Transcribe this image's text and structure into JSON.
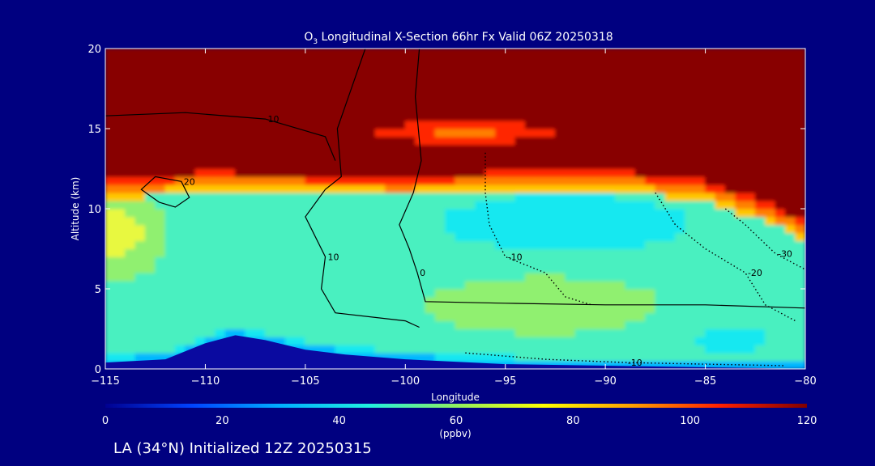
{
  "page": {
    "background": "#000080",
    "footer": "LA (34°N) Initialized 12Z 20250315"
  },
  "chart_data": {
    "type": "heatmap",
    "title": "O3 Longitudinal X-Section 66hr  Fx Valid 06Z 20250318",
    "title_parts": {
      "o": "O",
      "sub": "3",
      "rest": " Longitudinal X-Section 66hr  Fx Valid 06Z 20250318"
    },
    "xlabel": "Longitude",
    "ylabel": "Altitude (km)",
    "xlim": [
      -115,
      -80
    ],
    "ylim": [
      0,
      20
    ],
    "x_ticks": [
      -115,
      -110,
      -105,
      -100,
      -95,
      -90,
      -85,
      -80
    ],
    "x_tick_labels": [
      "−115",
      "−110",
      "−105",
      "−100",
      "−95",
      "−90",
      "−85",
      "−80"
    ],
    "y_ticks": [
      0,
      5,
      10,
      15,
      20
    ],
    "y_tick_labels": [
      "0",
      "5",
      "10",
      "15",
      "20"
    ],
    "colorbar": {
      "label": "(ppbv)",
      "range": [
        0,
        120
      ],
      "ticks": [
        0,
        20,
        40,
        60,
        80,
        100,
        120
      ],
      "tick_labels": [
        "0",
        "20",
        "40",
        "60",
        "80",
        "100",
        "120"
      ],
      "colors": [
        "#000090",
        "#0044ff",
        "#00b0ff",
        "#20f0e0",
        "#90f060",
        "#ffff00",
        "#ffa000",
        "#ff2000",
        "#800000"
      ]
    },
    "levels": [
      {
        "upper": 50,
        "color": "#00b8ff"
      },
      {
        "upper": 56,
        "color": "#18e8f0"
      },
      {
        "upper": 64,
        "color": "#48f0c0"
      },
      {
        "upper": 72,
        "color": "#90f070"
      },
      {
        "upper": 80,
        "color": "#e8f840"
      },
      {
        "upper": 88,
        "color": "#ffc800"
      },
      {
        "upper": 96,
        "color": "#ff8000"
      },
      {
        "upper": 104,
        "color": "#ff2800"
      },
      {
        "upper": 130,
        "color": "#880000"
      }
    ],
    "tropopause_km": [
      {
        "lon": -115,
        "km": 11.6
      },
      {
        "lon": -110,
        "km": 12.0
      },
      {
        "lon": -105,
        "km": 11.9
      },
      {
        "lon": -100,
        "km": 11.8
      },
      {
        "lon": -95,
        "km": 12.0
      },
      {
        "lon": -90,
        "km": 12.2
      },
      {
        "lon": -85,
        "km": 11.5
      },
      {
        "lon": -82,
        "km": 10.2
      },
      {
        "lon": -80,
        "km": 9.0
      }
    ],
    "terrain_km": [
      {
        "lon": -115,
        "km": 0.4
      },
      {
        "lon": -112,
        "km": 0.6
      },
      {
        "lon": -110,
        "km": 1.6
      },
      {
        "lon": -108.5,
        "km": 2.1
      },
      {
        "lon": -107,
        "km": 1.8
      },
      {
        "lon": -105,
        "km": 1.2
      },
      {
        "lon": -103,
        "km": 0.9
      },
      {
        "lon": -100,
        "km": 0.6
      },
      {
        "lon": -95,
        "km": 0.3
      },
      {
        "lon": -90,
        "km": 0.2
      },
      {
        "lon": -85,
        "km": 0.1
      },
      {
        "lon": -80,
        "km": 0.0
      }
    ],
    "contours": [
      {
        "value": 0,
        "style": "solid",
        "points": [
          [
            -99.3,
            20
          ],
          [
            -99.5,
            17
          ],
          [
            -99.2,
            13
          ],
          [
            -99.6,
            11
          ],
          [
            -100.3,
            9
          ],
          [
            -99.8,
            7.5
          ],
          [
            -99.4,
            6
          ],
          [
            -99.0,
            4.2
          ],
          [
            -95,
            4.1
          ],
          [
            -90,
            4.0
          ],
          [
            -85,
            4.0
          ],
          [
            -80,
            3.8
          ]
        ]
      },
      {
        "value": 10,
        "style": "solid",
        "points": [
          [
            -102,
            20
          ],
          [
            -103.4,
            15
          ],
          [
            -103.2,
            12
          ],
          [
            -104,
            11.2
          ],
          [
            -105,
            9.5
          ],
          [
            -104,
            7
          ],
          [
            -104.2,
            5
          ],
          [
            -103.5,
            3.5
          ],
          [
            -100,
            3.0
          ],
          [
            -99.3,
            2.6
          ]
        ]
      },
      {
        "value": 10,
        "style": "solid",
        "points": [
          [
            -115,
            15.8
          ],
          [
            -111,
            16
          ],
          [
            -107,
            15.6
          ],
          [
            -104,
            14.5
          ],
          [
            -103.5,
            13
          ]
        ]
      },
      {
        "value": 20,
        "style": "solid",
        "points": [
          [
            -112.3,
            10.4
          ],
          [
            -113.2,
            11.2
          ],
          [
            -112.5,
            12
          ],
          [
            -111.2,
            11.7
          ],
          [
            -110.8,
            10.7
          ],
          [
            -111.5,
            10.1
          ],
          [
            -112.3,
            10.4
          ]
        ]
      },
      {
        "value": -10,
        "style": "dotted",
        "points": [
          [
            -96,
            13.5
          ],
          [
            -96,
            11
          ],
          [
            -95.8,
            9
          ],
          [
            -95,
            7
          ],
          [
            -93,
            6
          ],
          [
            -92,
            4.5
          ],
          [
            -90.7,
            4.0
          ]
        ]
      },
      {
        "value": -20,
        "style": "dotted",
        "points": [
          [
            -87.5,
            11
          ],
          [
            -86.5,
            9
          ],
          [
            -85,
            7.5
          ],
          [
            -83,
            6
          ],
          [
            -82,
            4
          ],
          [
            -80.5,
            3
          ]
        ]
      },
      {
        "value": -30,
        "style": "dotted",
        "points": [
          [
            -84,
            10
          ],
          [
            -83,
            9
          ],
          [
            -81.5,
            7.2
          ],
          [
            -80,
            6.2
          ]
        ]
      },
      {
        "value": -10,
        "style": "dotted",
        "points": [
          [
            -97,
            1.0
          ],
          [
            -93,
            0.6
          ],
          [
            -89,
            0.4
          ],
          [
            -85,
            0.3
          ],
          [
            -81,
            0.2
          ]
        ]
      }
    ]
  }
}
